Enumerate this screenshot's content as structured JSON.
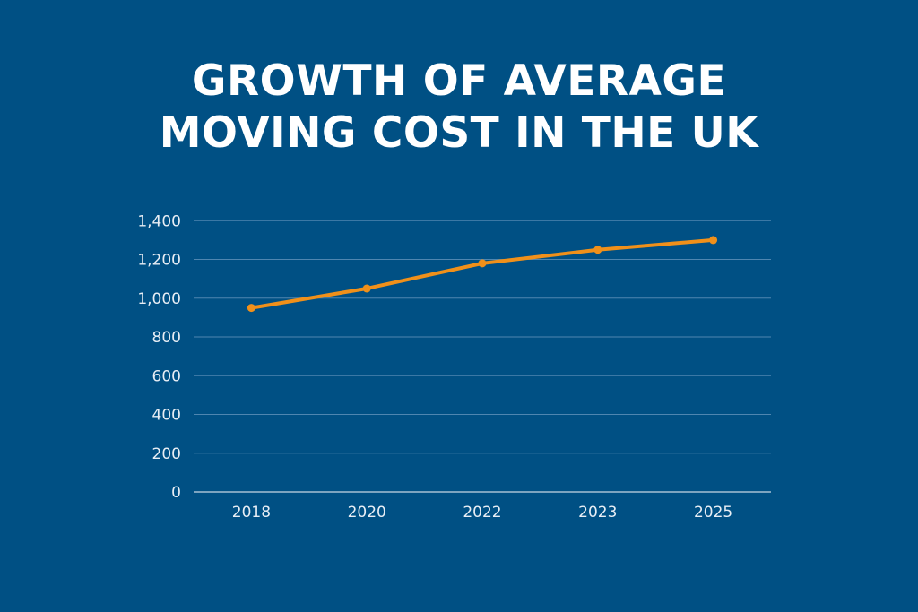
{
  "chart_data": {
    "type": "line",
    "title_lines": [
      "GROWTH OF AVERAGE",
      "MOVING COST IN THE UK"
    ],
    "categories": [
      "2018",
      "2020",
      "2022",
      "2023",
      "2025"
    ],
    "series": [
      {
        "values": [
          950,
          1050,
          1180,
          1250,
          1300
        ],
        "color": "#f0901a"
      }
    ],
    "xlabel": "",
    "ylabel": "",
    "ylim": [
      0,
      1400
    ],
    "yticks": [
      "0",
      "200",
      "400",
      "600",
      "800",
      "1,000",
      "1,200",
      "1,400"
    ],
    "grid": true,
    "legend": "none",
    "background": "#005084"
  }
}
